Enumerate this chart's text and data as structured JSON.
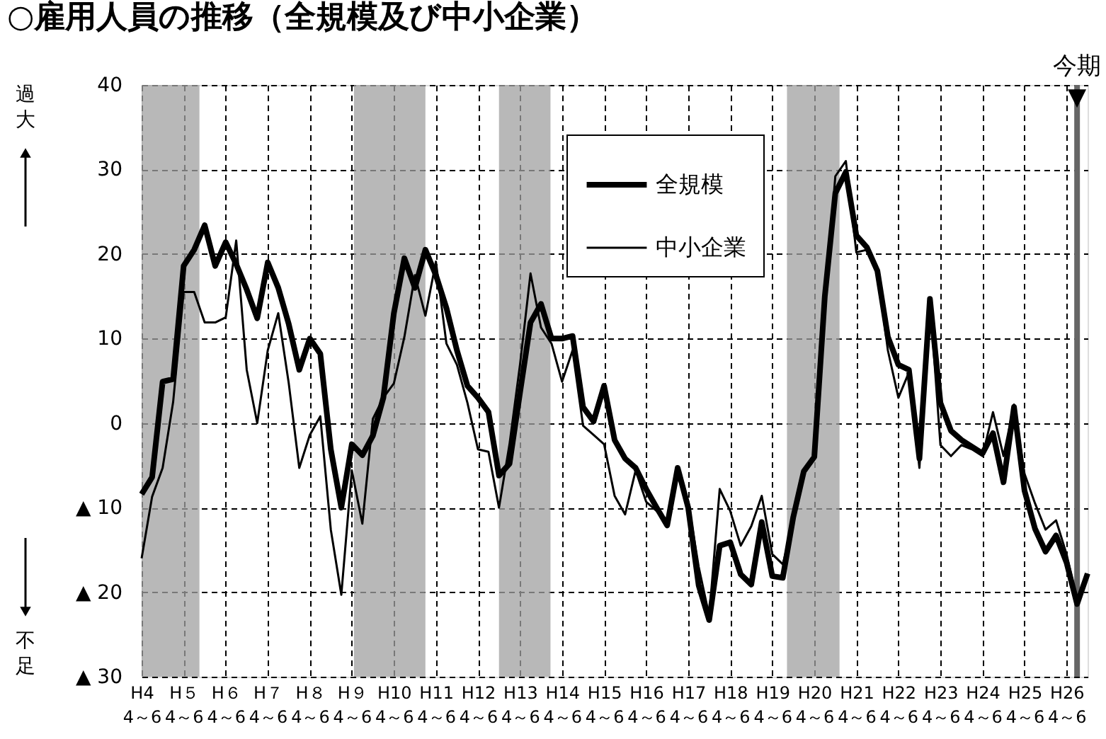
{
  "chart_data": {
    "type": "line",
    "title": "○雇用人員の推移（全規模及び中小企業）",
    "annotations": [
      "過大",
      "不足",
      "今期\n▼"
    ],
    "categories": [
      "H4\n4～6",
      null,
      null,
      null,
      "H５\n4～6",
      null,
      null,
      null,
      "H６\n4～6",
      null,
      null,
      null,
      "H７\n4～6",
      null,
      null,
      null,
      "H８\n4～6",
      null,
      null,
      null,
      "H９\n4～6",
      null,
      null,
      null,
      "H10\n4～6",
      null,
      null,
      null,
      "H11\n4～6",
      null,
      null,
      null,
      "H12\n4～6",
      null,
      null,
      null,
      "H13\n4～6",
      null,
      null,
      null,
      "H14\n4～6",
      null,
      null,
      null,
      "H15\n4～6",
      null,
      null,
      null,
      "H16\n4～6",
      null,
      null,
      null,
      "H17\n4～6",
      null,
      null,
      null,
      "H18\n4～6",
      null,
      null,
      null,
      "H19\n4～6",
      null,
      null,
      null,
      "H20\n4～6",
      null,
      null,
      null,
      "H21\n4～6",
      null,
      null,
      null,
      "H22\n4～6",
      null,
      null,
      null,
      "H23\n4～6",
      null,
      null,
      null,
      "H24\n4～6",
      null,
      null,
      null,
      "H25\n4～6",
      null,
      null,
      null,
      "H26\n4～6",
      null,
      null
    ],
    "series": [
      {
        "name": "全規模",
        "color": "#000000",
        "values": [
          -8.4,
          -6.4,
          4.9,
          5.2,
          18.6,
          20.5,
          23.4,
          18.6,
          21.4,
          18.8,
          15.8,
          12.4,
          19,
          16,
          11.7,
          6.3,
          10,
          8.2,
          -3.1,
          -10,
          -2.5,
          -3.8,
          -1.5,
          3,
          13,
          19.5,
          16,
          20.5,
          17.5,
          13.6,
          8.6,
          4.4,
          3,
          1.3,
          -6.2,
          -4.8,
          3.6,
          11.9,
          14.1,
          10,
          10,
          10.3,
          1.9,
          0.2,
          4.4,
          -2,
          -4.2,
          -5.3,
          -7.8,
          -10,
          -12.1,
          -5.3,
          -10,
          -19.2,
          -23.3,
          -14.5,
          -14.1,
          -17.9,
          -19.1,
          -11.7,
          -18.1,
          -18.3,
          -11.1,
          -5.7,
          -4,
          15,
          27.2,
          29.7,
          22.2,
          20.8,
          18,
          10.2,
          6.9,
          6.3,
          -4.2,
          14.7,
          2.4,
          -0.9,
          -2,
          -2.8,
          -3.6,
          -1.2,
          -7,
          1.9,
          -8,
          -12.5,
          -15.2,
          -13.3,
          -16.5,
          -21.4,
          -17.8
        ]
      },
      {
        "name": "中小企業",
        "color": "#000000",
        "values": [
          -16,
          -8.7,
          -5.3,
          2.5,
          15.5,
          15.5,
          11.9,
          11.9,
          12.5,
          21.6,
          6.3,
          0,
          8.6,
          13,
          4.7,
          -5.3,
          -1.4,
          0.8,
          -12.6,
          -20.3,
          -5.6,
          -11.9,
          0.5,
          3,
          4.7,
          10.2,
          17.5,
          12.7,
          19.1,
          9.4,
          6.9,
          2.4,
          -3.1,
          -3.4,
          -10,
          -2.5,
          6.9,
          17.7,
          11.3,
          9.4,
          4.9,
          8.6,
          -0.3,
          -1.4,
          -2.5,
          -8.6,
          -10.8,
          -5.6,
          -9.3,
          -10.4,
          -11.5,
          -5.3,
          -9.3,
          -17,
          -22.8,
          -7.8,
          -10.4,
          -14.5,
          -12.2,
          -8.6,
          -15.5,
          -16.7,
          -11.8,
          -6,
          -3.8,
          14,
          29.2,
          31,
          20.2,
          20.5,
          18,
          8.6,
          3,
          6,
          -5.3,
          14.7,
          -2.6,
          -3.9,
          -2.6,
          -3.1,
          -3.9,
          1.3,
          -3.9,
          2.2,
          -6,
          -9.5,
          -12.6,
          -11.5,
          -15.5,
          -21,
          -17.8
        ]
      }
    ],
    "ylim": [
      -30,
      40
    ],
    "yticks": [
      40,
      30,
      20,
      10,
      0,
      {
        "value": -10,
        "label": "▲ 10"
      },
      {
        "value": -20,
        "label": "▲ 20"
      },
      {
        "value": -30,
        "label": "▲ 30"
      }
    ],
    "grid": true,
    "legend": "top",
    "marker": "none",
    "line_style": "solid"
  }
}
